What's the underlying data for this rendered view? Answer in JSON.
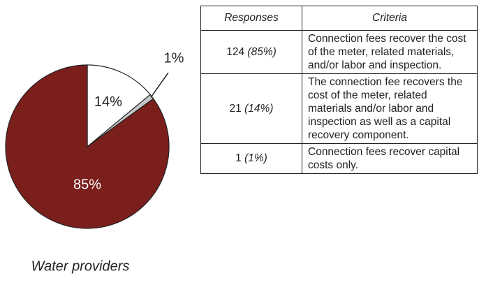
{
  "chart_data": {
    "type": "pie",
    "title": "Water providers",
    "values": [
      14,
      1,
      85
    ],
    "value_labels": [
      "14%",
      "1%",
      "85%"
    ],
    "colors": [
      "#ffffff",
      "#c8c8c8",
      "#7a1f1c"
    ]
  },
  "table": {
    "header": [
      "Responses",
      "Criteria"
    ],
    "rows": [
      {
        "count": "124",
        "share": "(85%)",
        "criteria": "Connection fees recover the cost of the meter, related materials, and/or labor and inspection."
      },
      {
        "count": "21",
        "share": "(14%)",
        "criteria": "The connection fee recovers the cost of the meter, related materials and/or labor and inspection as well as a capital recovery component."
      },
      {
        "count": "1",
        "share": "(1%)",
        "criteria": "Connection fees recover capital costs only."
      }
    ]
  }
}
